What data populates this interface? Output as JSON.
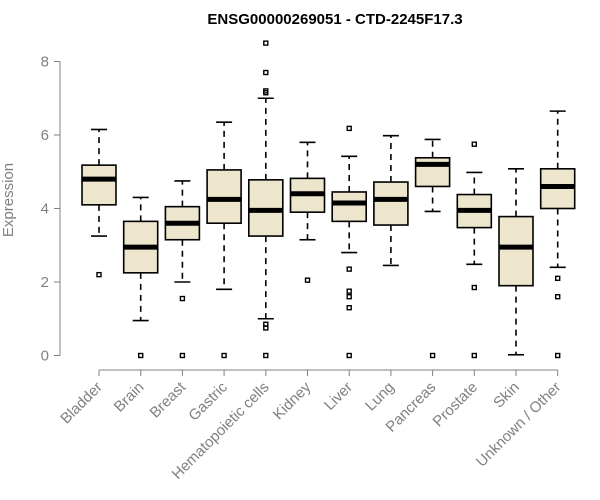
{
  "chart_data": {
    "type": "boxplot",
    "title": "ENSG00000269051 - CTD-2245F17.3",
    "xlabel": "",
    "ylabel": "Expression",
    "ylim": [
      0,
      8.6
    ],
    "yticks": [
      0,
      2,
      4,
      6,
      8
    ],
    "categories": [
      "Bladder",
      "Brain",
      "Breast",
      "Gastric",
      "Hematopoietic cells",
      "Kidney",
      "Liver",
      "Lung",
      "Pancreas",
      "Prostate",
      "Skin",
      "Unknown / Other"
    ],
    "series": [
      {
        "name": "Bladder",
        "whisker_low": 3.25,
        "q1": 4.1,
        "median": 4.8,
        "q3": 5.18,
        "whisker_high": 6.15,
        "outliers": [
          2.2
        ]
      },
      {
        "name": "Brain",
        "whisker_low": 0.95,
        "q1": 2.25,
        "median": 2.95,
        "q3": 3.65,
        "whisker_high": 4.3,
        "outliers": [
          0.0
        ]
      },
      {
        "name": "Breast",
        "whisker_low": 2.0,
        "q1": 3.15,
        "median": 3.6,
        "q3": 4.05,
        "whisker_high": 4.75,
        "outliers": [
          1.55,
          0.0
        ]
      },
      {
        "name": "Gastric",
        "whisker_low": 1.8,
        "q1": 3.6,
        "median": 4.25,
        "q3": 5.05,
        "whisker_high": 6.35,
        "outliers": [
          0.0
        ]
      },
      {
        "name": "Hematopoietic cells",
        "whisker_low": 1.0,
        "q1": 3.25,
        "median": 3.95,
        "q3": 4.78,
        "whisker_high": 7.0,
        "outliers": [
          8.5,
          7.7,
          7.2,
          7.15,
          0.85,
          0.75,
          0.0
        ]
      },
      {
        "name": "Kidney",
        "whisker_low": 3.15,
        "q1": 3.9,
        "median": 4.4,
        "q3": 4.82,
        "whisker_high": 5.8,
        "outliers": [
          2.05
        ]
      },
      {
        "name": "Liver",
        "whisker_low": 2.8,
        "q1": 3.65,
        "median": 4.15,
        "q3": 4.45,
        "whisker_high": 5.42,
        "outliers": [
          6.18,
          2.35,
          1.75,
          1.6,
          1.3,
          0.0
        ]
      },
      {
        "name": "Lung",
        "whisker_low": 2.45,
        "q1": 3.55,
        "median": 4.25,
        "q3": 4.72,
        "whisker_high": 5.98,
        "outliers": []
      },
      {
        "name": "Pancreas",
        "whisker_low": 3.92,
        "q1": 4.6,
        "median": 5.2,
        "q3": 5.38,
        "whisker_high": 5.88,
        "outliers": [
          0.0
        ]
      },
      {
        "name": "Prostate",
        "whisker_low": 2.48,
        "q1": 3.48,
        "median": 3.95,
        "q3": 4.38,
        "whisker_high": 4.98,
        "outliers": [
          5.75,
          1.85,
          0.0
        ]
      },
      {
        "name": "Skin",
        "whisker_low": 0.02,
        "q1": 1.9,
        "median": 2.95,
        "q3": 3.78,
        "whisker_high": 5.08,
        "outliers": []
      },
      {
        "name": "Unknown / Other",
        "whisker_low": 2.4,
        "q1": 4.0,
        "median": 4.6,
        "q3": 5.08,
        "whisker_high": 6.65,
        "outliers": [
          2.1,
          1.6,
          0.0
        ]
      }
    ]
  },
  "colors": {
    "box_fill": "#ede5cc",
    "box_stroke": "#000000",
    "axis": "#808080"
  }
}
